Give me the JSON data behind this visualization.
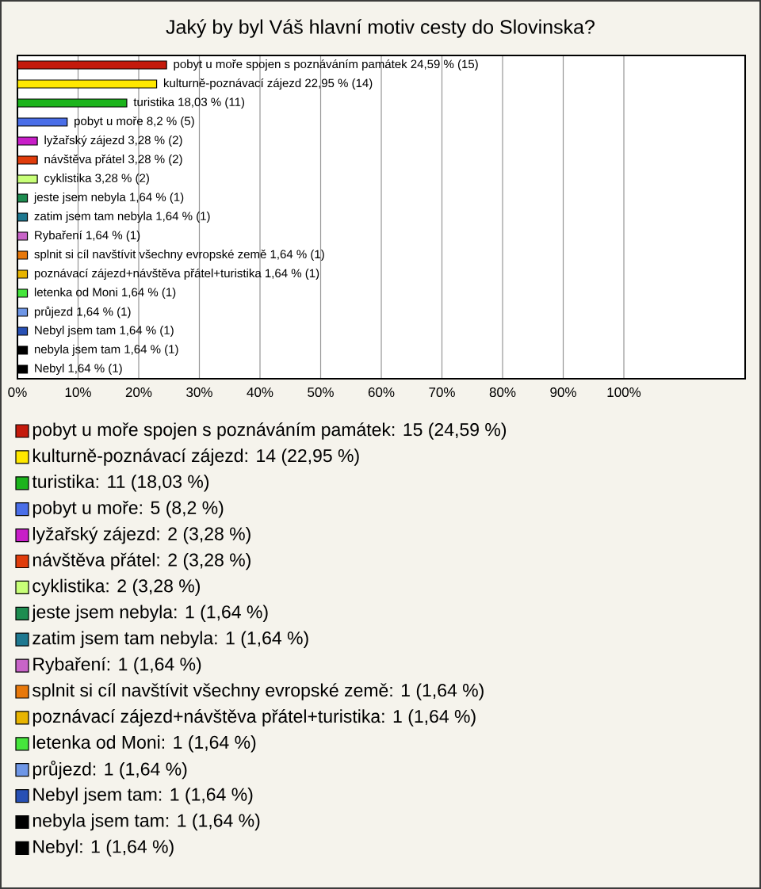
{
  "chart_data": {
    "type": "bar",
    "orientation": "horizontal",
    "title": "Jaký by byl Váš hlavní motiv cesty do Slovinska?",
    "categories": [
      null,
      null,
      null,
      null,
      null,
      null,
      null,
      null,
      null,
      null,
      null,
      null,
      null,
      null,
      null,
      null,
      null
    ],
    "values": [
      24.59,
      22.95,
      18.03,
      8.2,
      3.28,
      3.28,
      3.28,
      1.64,
      1.64,
      1.64,
      1.64,
      1.64,
      1.64,
      1.64,
      1.64,
      1.64,
      1.64
    ],
    "value_labels": [
      "pobyt u moře spojen s poznáváním památek 24,59 % (15)",
      "kulturně-poznávací zájezd 22,95 % (14)",
      "turistika 18,03 % (11)",
      "pobyt u moře 8,2 % (5)",
      "lyžařský zájezd 3,28 % (2)",
      "návštěva přátel 3,28 % (2)",
      "cyklistika 3,28 % (2)",
      "jeste jsem nebyla 1,64 % (1)",
      "zatim jsem tam nebyla 1,64 % (1)",
      "Rybaření 1,64 % (1)",
      "splnit si cíl navštívit všechny evropské země 1,64 % (1)",
      "poznávací zájezd+návštěva přátel+turistika 1,64 % (1)",
      "letenka od Moni 1,64 % (1)",
      "průjezd 1,64 % (1)",
      "Nebyl jsem tam 1,64 % (1)",
      "nebyla jsem tam 1,64 % (1)",
      "Nebyl 1,64 % (1)"
    ],
    "colors": [
      "#c41a0c",
      "#ffe800",
      "#1cb41c",
      "#4a6ee8",
      "#c81ec8",
      "#e03c0c",
      "#c8ff78",
      "#1e8c50",
      "#1e7890",
      "#c864c8",
      "#e8780a",
      "#e8b400",
      "#46e63c",
      "#6e96e6",
      "#2850b4",
      "#000000",
      "#000000"
    ],
    "xlim": [
      0,
      120
    ],
    "xticks": [
      {
        "value": 0,
        "label": "0%"
      },
      {
        "value": 10,
        "label": "10%"
      },
      {
        "value": 20,
        "label": "20%"
      },
      {
        "value": 30,
        "label": "30%"
      },
      {
        "value": 40,
        "label": "40%"
      },
      {
        "value": 50,
        "label": "50%"
      },
      {
        "value": 60,
        "label": "60%"
      },
      {
        "value": 70,
        "label": "70%"
      },
      {
        "value": 80,
        "label": "80%"
      },
      {
        "value": 90,
        "label": "90%"
      },
      {
        "value": 100,
        "label": "100%"
      }
    ],
    "grid": "x",
    "annotations": [
      "pobyt u moře spojen s poznáváním památek: 15 (24,59 %)",
      "kulturně-poznávací zájezd: 14 (22,95 %)",
      "turistika: 11 (18,03 %)",
      "pobyt u moře: 5 (8,2 %)",
      "lyžařský zájezd: 2 (3,28 %)",
      "návštěva přátel: 2 (3,28 %)",
      "cyklistika: 2 (3,28 %)",
      "jeste jsem nebyla: 1 (1,64 %)",
      "zatim jsem tam nebyla: 1 (1,64 %)",
      "Rybaření: 1 (1,64 %)",
      "splnit si cíl navštívit všechny evropské země: 1 (1,64 %)",
      "poznávací zájezd+návštěva přátel+turistika: 1 (1,64 %)",
      "letenka od Moni: 1 (1,64 %)",
      "průjezd: 1 (1,64 %)",
      "Nebyl jsem tam: 1 (1,64 %)",
      "nebyla jsem tam: 1 (1,64 %)",
      "Nebyl: 1 (1,64 %)"
    ]
  }
}
